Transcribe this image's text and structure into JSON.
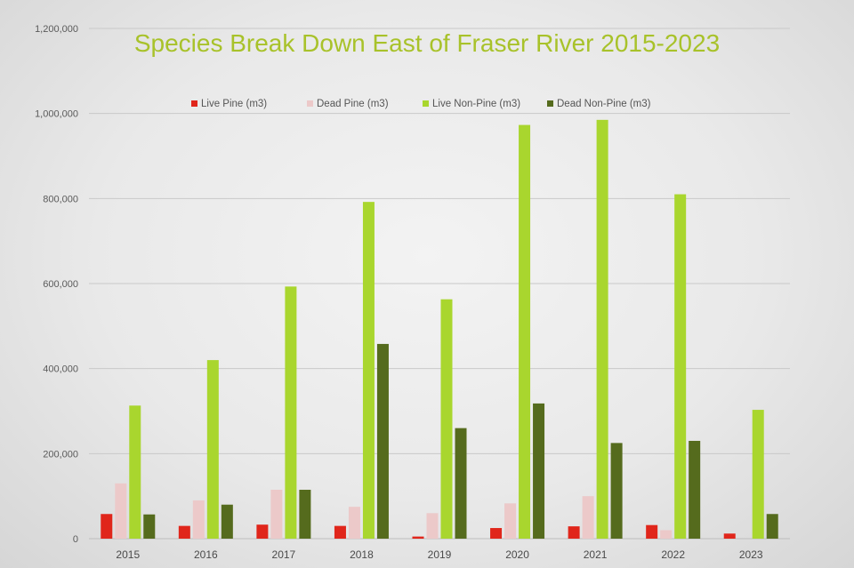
{
  "chart_data": {
    "type": "bar",
    "title": "Species Break Down East of Fraser River 2015-2023",
    "xlabel": "",
    "ylabel": "",
    "ylim": [
      0,
      1200000
    ],
    "yticks": [
      "0",
      "200,000",
      "400,000",
      "600,000",
      "800,000",
      "1,000,000",
      "1,200,000"
    ],
    "ytick_values": [
      0,
      200000,
      400000,
      600000,
      800000,
      1000000,
      1200000
    ],
    "grid": true,
    "legend_position": "top",
    "categories": [
      "2015",
      "2016",
      "2017",
      "2018",
      "2019",
      "2020",
      "2021",
      "2022",
      "2023"
    ],
    "series": [
      {
        "name": "Live Pine (m3)",
        "color": "#e0261b",
        "values": [
          58000,
          30000,
          33000,
          30000,
          5000,
          25000,
          29000,
          32000,
          12000
        ]
      },
      {
        "name": "Dead Pine (m3)",
        "color": "#ecc9c9",
        "values": [
          130000,
          90000,
          115000,
          75000,
          60000,
          83000,
          100000,
          20000,
          0
        ]
      },
      {
        "name": "Live Non-Pine (m3)",
        "color": "#a9d62e",
        "values": [
          313000,
          420000,
          593000,
          792000,
          563000,
          973000,
          985000,
          810000,
          303000
        ]
      },
      {
        "name": "Dead Non-Pine (m3)",
        "color": "#556b1d",
        "values": [
          57000,
          80000,
          115000,
          458000,
          260000,
          318000,
          225000,
          230000,
          58000
        ]
      }
    ]
  }
}
